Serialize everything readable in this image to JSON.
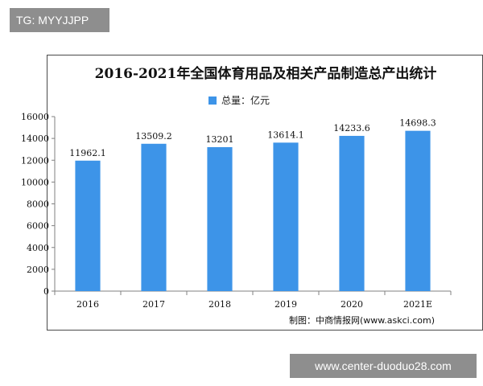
{
  "header_tag": "TG: MYYJJPP",
  "footer_tag": "www.center-duoduo28.com",
  "source_note": "制图：中商情报网(www.askci.com)",
  "colors": {
    "bar": "#3d94e8",
    "axis": "#808080"
  },
  "chart_data": {
    "type": "bar",
    "title": "2016-2021年全国体育用品及相关产品制造总产出统计",
    "categories": [
      "2016",
      "2017",
      "2018",
      "2019",
      "2020",
      "2021E"
    ],
    "series": [
      {
        "name": "总量：亿元",
        "values": [
          11962.1,
          13509.2,
          13201,
          13614.1,
          14233.6,
          14698.3
        ],
        "labels": [
          "11962.1",
          "13509.2",
          "13201",
          "13614.1",
          "14233.6",
          "14698.3"
        ]
      }
    ],
    "yticks": [
      0,
      2000,
      4000,
      6000,
      8000,
      10000,
      12000,
      14000,
      16000
    ],
    "ylim": [
      0,
      16000
    ],
    "grid": false,
    "legend_position": "top-center"
  }
}
